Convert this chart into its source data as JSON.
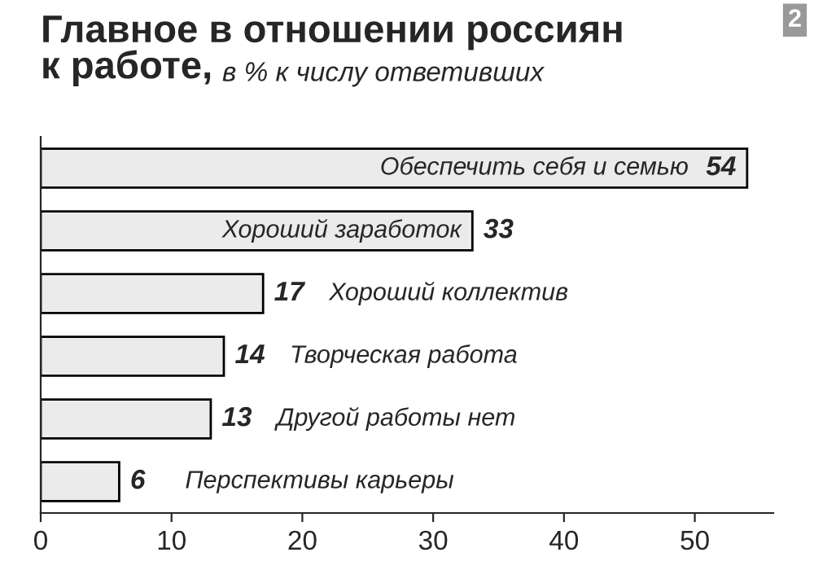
{
  "chart_data": {
    "type": "bar",
    "orientation": "horizontal",
    "title": "Главное в отношении россиян\nк работе,",
    "subtitle": "в % к числу ответивших",
    "categories": [
      "Обеспечить себя и семью",
      "Хороший заработок",
      "Хороший коллектив",
      "Творческая работа",
      "Другой работы нет",
      "Перспективы карьеры"
    ],
    "values": [
      54,
      33,
      17,
      14,
      13,
      6
    ],
    "color": "#ebebeb",
    "xlim": [
      0,
      56
    ],
    "xticks": [
      0,
      10,
      20,
      30,
      40,
      50
    ],
    "grid": false,
    "data_labels": true,
    "legend": false,
    "tick_labels": "x",
    "annotations": [
      "2"
    ]
  }
}
